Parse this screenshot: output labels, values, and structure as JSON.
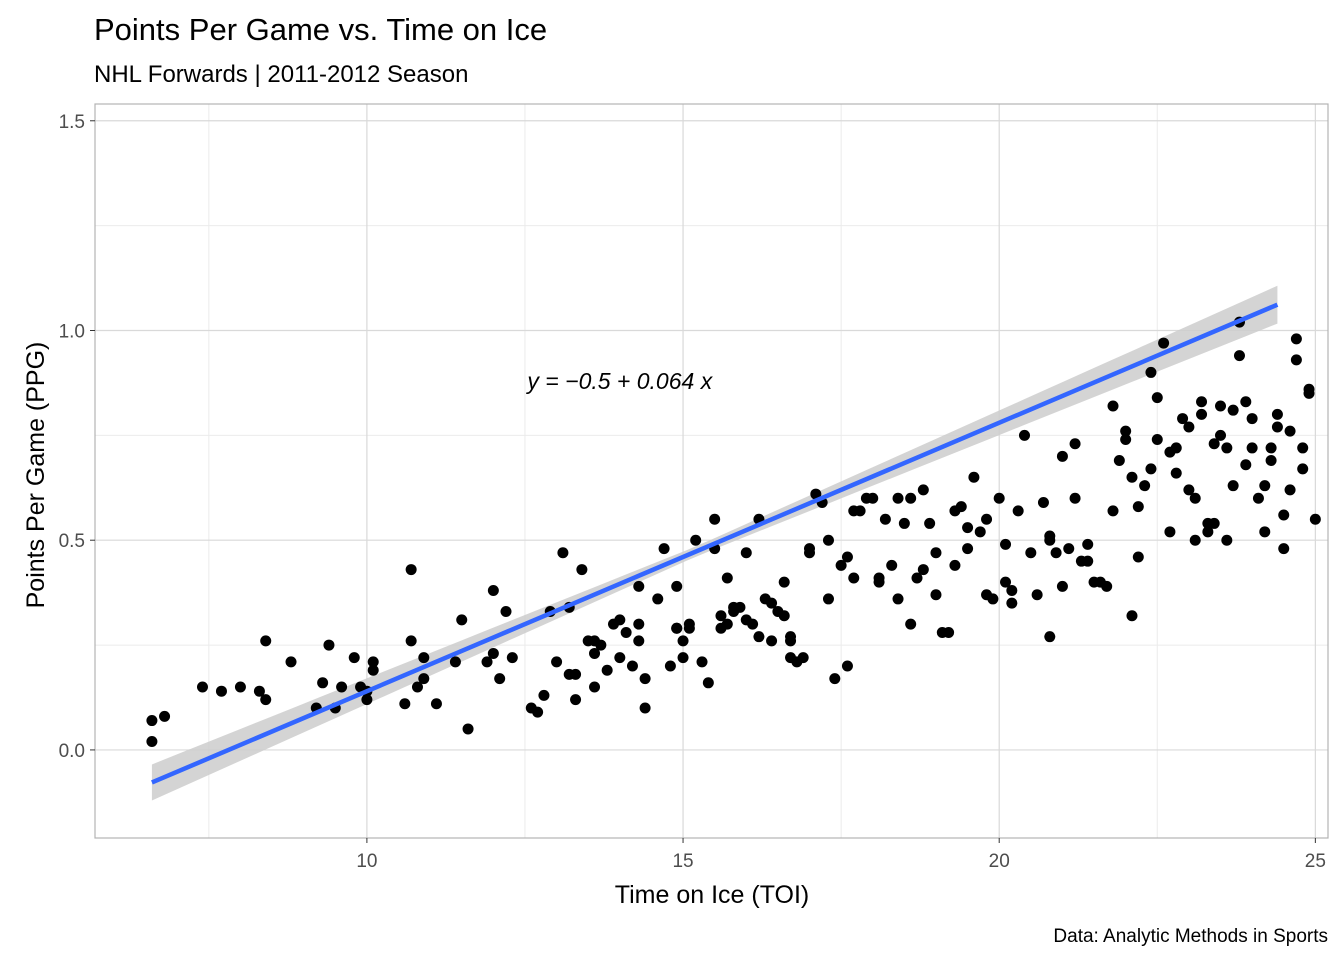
{
  "chart_data": {
    "type": "scatter",
    "title": "Points Per Game vs. Time on Ice",
    "subtitle": "NHL Forwards | 2011-2012 Season",
    "xlabel": "Time on Ice (TOI)",
    "ylabel": "Points Per Game (PPG)",
    "caption": "Data: Analytic Methods in Sports",
    "xlim": [
      5.7,
      25.2
    ],
    "ylim": [
      -0.21,
      1.54
    ],
    "x_ticks": [
      10,
      15,
      20,
      25
    ],
    "y_ticks": [
      0.0,
      0.5,
      1.0,
      1.5
    ],
    "y_tick_labels": [
      "0.0",
      "0.5",
      "1.0",
      "1.5"
    ],
    "grid": true,
    "annotation": {
      "text": "y = −0.5 + 0.064 x",
      "x": 14.0,
      "y": 0.86
    },
    "fit": {
      "intercept": -0.5,
      "slope": 0.064,
      "x_range": [
        6.6,
        24.4
      ],
      "color": "#3366ff",
      "ribbon_color": "#cccccc"
    },
    "point_color": "#000000",
    "points": [
      [
        6.6,
        0.02
      ],
      [
        6.6,
        0.07
      ],
      [
        6.8,
        0.08
      ],
      [
        7.4,
        0.15
      ],
      [
        7.7,
        0.14
      ],
      [
        8.0,
        0.15
      ],
      [
        8.3,
        0.14
      ],
      [
        8.4,
        0.12
      ],
      [
        8.4,
        0.26
      ],
      [
        8.8,
        0.21
      ],
      [
        9.2,
        0.1
      ],
      [
        9.3,
        0.16
      ],
      [
        9.4,
        0.25
      ],
      [
        9.5,
        0.1
      ],
      [
        9.6,
        0.15
      ],
      [
        9.8,
        0.22
      ],
      [
        9.9,
        0.15
      ],
      [
        10.0,
        0.14
      ],
      [
        10.0,
        0.12
      ],
      [
        10.1,
        0.21
      ],
      [
        10.1,
        0.19
      ],
      [
        10.6,
        0.11
      ],
      [
        10.7,
        0.43
      ],
      [
        10.7,
        0.26
      ],
      [
        10.8,
        0.15
      ],
      [
        10.9,
        0.17
      ],
      [
        10.9,
        0.22
      ],
      [
        11.1,
        0.11
      ],
      [
        11.4,
        0.21
      ],
      [
        11.5,
        0.31
      ],
      [
        11.6,
        0.05
      ],
      [
        11.9,
        0.21
      ],
      [
        12.0,
        0.23
      ],
      [
        12.0,
        0.38
      ],
      [
        12.1,
        0.17
      ],
      [
        12.2,
        0.33
      ],
      [
        12.3,
        0.22
      ],
      [
        12.6,
        0.1
      ],
      [
        12.7,
        0.09
      ],
      [
        12.8,
        0.13
      ],
      [
        12.9,
        0.33
      ],
      [
        13.0,
        0.21
      ],
      [
        13.1,
        0.47
      ],
      [
        13.2,
        0.34
      ],
      [
        13.2,
        0.18
      ],
      [
        13.3,
        0.12
      ],
      [
        13.3,
        0.18
      ],
      [
        13.4,
        0.43
      ],
      [
        13.5,
        0.26
      ],
      [
        13.6,
        0.15
      ],
      [
        13.6,
        0.26
      ],
      [
        13.6,
        0.23
      ],
      [
        13.7,
        0.25
      ],
      [
        13.8,
        0.19
      ],
      [
        13.9,
        0.3
      ],
      [
        14.0,
        0.31
      ],
      [
        14.0,
        0.22
      ],
      [
        14.1,
        0.28
      ],
      [
        14.2,
        0.2
      ],
      [
        14.3,
        0.39
      ],
      [
        14.3,
        0.26
      ],
      [
        14.3,
        0.3
      ],
      [
        14.4,
        0.1
      ],
      [
        14.4,
        0.17
      ],
      [
        14.6,
        0.36
      ],
      [
        14.7,
        0.48
      ],
      [
        14.8,
        0.2
      ],
      [
        14.9,
        0.29
      ],
      [
        14.9,
        0.39
      ],
      [
        14.9,
        0.29
      ],
      [
        15.0,
        0.26
      ],
      [
        15.0,
        0.22
      ],
      [
        15.1,
        0.29
      ],
      [
        15.1,
        0.3
      ],
      [
        15.2,
        0.5
      ],
      [
        15.3,
        0.21
      ],
      [
        15.4,
        0.16
      ],
      [
        15.5,
        0.48
      ],
      [
        15.5,
        0.55
      ],
      [
        15.6,
        0.32
      ],
      [
        15.6,
        0.29
      ],
      [
        15.7,
        0.3
      ],
      [
        15.7,
        0.41
      ],
      [
        15.8,
        0.33
      ],
      [
        15.8,
        0.34
      ],
      [
        15.9,
        0.34
      ],
      [
        16.0,
        0.47
      ],
      [
        16.0,
        0.31
      ],
      [
        16.1,
        0.3
      ],
      [
        16.2,
        0.27
      ],
      [
        16.2,
        0.55
      ],
      [
        16.3,
        0.36
      ],
      [
        16.4,
        0.35
      ],
      [
        16.4,
        0.26
      ],
      [
        16.5,
        0.33
      ],
      [
        16.6,
        0.32
      ],
      [
        16.6,
        0.4
      ],
      [
        16.7,
        0.26
      ],
      [
        16.7,
        0.27
      ],
      [
        16.7,
        0.22
      ],
      [
        16.8,
        0.21
      ],
      [
        16.9,
        0.22
      ],
      [
        17.0,
        0.48
      ],
      [
        17.0,
        0.47
      ],
      [
        17.1,
        0.61
      ],
      [
        17.2,
        0.59
      ],
      [
        17.3,
        0.5
      ],
      [
        17.3,
        0.36
      ],
      [
        17.4,
        0.17
      ],
      [
        17.5,
        0.44
      ],
      [
        17.6,
        0.2
      ],
      [
        17.6,
        0.46
      ],
      [
        17.7,
        0.41
      ],
      [
        17.7,
        0.57
      ],
      [
        17.8,
        0.57
      ],
      [
        17.9,
        0.6
      ],
      [
        18.0,
        0.6
      ],
      [
        18.1,
        0.41
      ],
      [
        18.1,
        0.4
      ],
      [
        18.2,
        0.55
      ],
      [
        18.3,
        0.44
      ],
      [
        18.4,
        0.6
      ],
      [
        18.4,
        0.36
      ],
      [
        18.5,
        0.54
      ],
      [
        18.6,
        0.6
      ],
      [
        18.6,
        0.3
      ],
      [
        18.7,
        0.41
      ],
      [
        18.8,
        0.62
      ],
      [
        18.8,
        0.43
      ],
      [
        18.9,
        0.54
      ],
      [
        19.0,
        0.47
      ],
      [
        19.0,
        0.37
      ],
      [
        19.1,
        0.28
      ],
      [
        19.2,
        0.28
      ],
      [
        19.3,
        0.44
      ],
      [
        19.3,
        0.57
      ],
      [
        19.4,
        0.58
      ],
      [
        19.5,
        0.48
      ],
      [
        19.5,
        0.53
      ],
      [
        19.6,
        0.65
      ],
      [
        19.7,
        0.52
      ],
      [
        19.8,
        0.37
      ],
      [
        19.8,
        0.55
      ],
      [
        19.9,
        0.36
      ],
      [
        20.0,
        0.6
      ],
      [
        20.1,
        0.49
      ],
      [
        20.1,
        0.4
      ],
      [
        20.2,
        0.35
      ],
      [
        20.2,
        0.38
      ],
      [
        20.3,
        0.57
      ],
      [
        20.4,
        0.75
      ],
      [
        20.5,
        0.47
      ],
      [
        20.6,
        0.37
      ],
      [
        20.7,
        0.59
      ],
      [
        20.8,
        0.27
      ],
      [
        20.8,
        0.5
      ],
      [
        20.8,
        0.51
      ],
      [
        20.9,
        0.47
      ],
      [
        21.0,
        0.39
      ],
      [
        21.0,
        0.7
      ],
      [
        21.1,
        0.48
      ],
      [
        21.2,
        0.6
      ],
      [
        21.2,
        0.73
      ],
      [
        21.3,
        0.45
      ],
      [
        21.4,
        0.45
      ],
      [
        21.4,
        0.49
      ],
      [
        21.5,
        0.4
      ],
      [
        21.6,
        0.4
      ],
      [
        21.7,
        0.39
      ],
      [
        21.8,
        0.82
      ],
      [
        21.8,
        0.57
      ],
      [
        21.9,
        0.69
      ],
      [
        22.0,
        0.76
      ],
      [
        22.0,
        0.74
      ],
      [
        22.1,
        0.65
      ],
      [
        22.1,
        0.32
      ],
      [
        22.2,
        0.58
      ],
      [
        22.2,
        0.46
      ],
      [
        22.3,
        0.63
      ],
      [
        22.4,
        0.67
      ],
      [
        22.4,
        0.9
      ],
      [
        22.5,
        0.74
      ],
      [
        22.5,
        0.84
      ],
      [
        22.6,
        0.97
      ],
      [
        22.7,
        0.71
      ],
      [
        22.7,
        0.52
      ],
      [
        22.8,
        0.66
      ],
      [
        22.8,
        0.72
      ],
      [
        22.9,
        0.79
      ],
      [
        23.0,
        0.77
      ],
      [
        23.0,
        0.62
      ],
      [
        23.1,
        0.6
      ],
      [
        23.1,
        0.5
      ],
      [
        23.2,
        0.8
      ],
      [
        23.2,
        0.83
      ],
      [
        23.3,
        0.52
      ],
      [
        23.3,
        0.54
      ],
      [
        23.4,
        0.54
      ],
      [
        23.4,
        0.73
      ],
      [
        23.5,
        0.82
      ],
      [
        23.5,
        0.75
      ],
      [
        23.6,
        0.5
      ],
      [
        23.6,
        0.72
      ],
      [
        23.7,
        0.81
      ],
      [
        23.7,
        0.63
      ],
      [
        23.8,
        1.02
      ],
      [
        23.8,
        0.94
      ],
      [
        23.9,
        0.68
      ],
      [
        23.9,
        0.83
      ],
      [
        24.0,
        0.79
      ],
      [
        24.0,
        0.72
      ],
      [
        24.1,
        0.6
      ],
      [
        24.2,
        0.63
      ],
      [
        24.2,
        0.52
      ],
      [
        24.3,
        0.72
      ],
      [
        24.3,
        0.69
      ],
      [
        24.4,
        0.8
      ],
      [
        24.4,
        0.77
      ],
      [
        24.5,
        0.56
      ],
      [
        24.5,
        0.48
      ],
      [
        24.6,
        0.76
      ],
      [
        24.6,
        0.62
      ],
      [
        24.7,
        0.93
      ],
      [
        24.7,
        0.98
      ],
      [
        24.8,
        0.67
      ],
      [
        24.8,
        0.72
      ],
      [
        24.9,
        0.86
      ],
      [
        24.9,
        0.85
      ],
      [
        25.0,
        0.55
      ]
    ]
  }
}
